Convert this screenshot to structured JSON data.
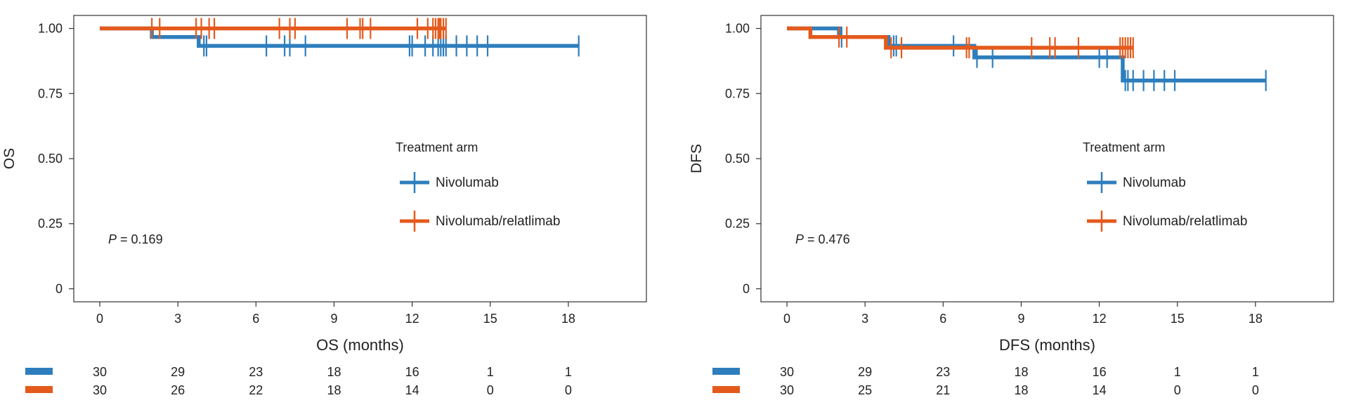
{
  "colors": {
    "nivolumab": "#2E7EBD",
    "nivolumab_relatlimab": "#E45A1C",
    "frame": "#333333"
  },
  "chart_data": [
    {
      "type": "line",
      "subtype": "kaplan-meier",
      "ylabel": "OS",
      "xlabel": "OS (months)",
      "xlim": [
        -1,
        21
      ],
      "ylim": [
        -0.05,
        1.05
      ],
      "xticks": [
        0,
        3,
        6,
        9,
        12,
        15,
        18
      ],
      "yticks": [
        0,
        0.25,
        0.5,
        0.75,
        1.0
      ],
      "ytick_labels": [
        "0",
        "0.25",
        "0.50",
        "0.75",
        "1.00"
      ],
      "grid": false,
      "legend_title": "Treatment arm",
      "legend_position": "right",
      "pvalue_prefix": "P",
      "pvalue_text": " = 0.169",
      "series": [
        {
          "name": "Nivolumab",
          "color_key": "nivolumab",
          "steps": [
            [
              0,
              1.0
            ],
            [
              2.0,
              0.967
            ],
            [
              3.8,
              0.933
            ],
            [
              18.4,
              0.933
            ]
          ],
          "censors": [
            4.0,
            4.1,
            6.4,
            7.1,
            7.3,
            7.9,
            11.9,
            12.0,
            12.5,
            12.8,
            13.0,
            13.1,
            13.2,
            13.3,
            13.7,
            14.1,
            14.5,
            14.9,
            18.4
          ]
        },
        {
          "name": "Nivolumab/relatlimab",
          "color_key": "nivolumab_relatlimab",
          "steps": [
            [
              0,
              1.0
            ],
            [
              13.3,
              1.0
            ]
          ],
          "censors": [
            2.0,
            2.3,
            3.7,
            3.9,
            4.2,
            4.4,
            6.9,
            7.3,
            7.5,
            9.5,
            10.0,
            10.1,
            10.4,
            12.2,
            12.6,
            12.8,
            12.9,
            13.0,
            13.05,
            13.1,
            13.2,
            13.3
          ]
        }
      ],
      "risk_table": {
        "times": [
          0,
          3,
          6,
          9,
          12,
          15,
          18
        ],
        "rows": [
          {
            "color_key": "nivolumab",
            "counts": [
              "30",
              "29",
              "23",
              "18",
              "16",
              "1",
              "1"
            ]
          },
          {
            "color_key": "nivolumab_relatlimab",
            "counts": [
              "30",
              "26",
              "22",
              "18",
              "14",
              "0",
              "0"
            ]
          }
        ]
      }
    },
    {
      "type": "line",
      "subtype": "kaplan-meier",
      "ylabel": "DFS",
      "xlabel": "DFS (months)",
      "xlim": [
        -1,
        21
      ],
      "ylim": [
        -0.05,
        1.05
      ],
      "xticks": [
        0,
        3,
        6,
        9,
        12,
        15,
        18
      ],
      "yticks": [
        0,
        0.25,
        0.5,
        0.75,
        1.0
      ],
      "ytick_labels": [
        "0",
        "0.25",
        "0.50",
        "0.75",
        "1.00"
      ],
      "grid": false,
      "legend_title": "Treatment arm",
      "legend_position": "right",
      "pvalue_prefix": "P",
      "pvalue_text": " = 0.476",
      "series": [
        {
          "name": "Nivolumab",
          "color_key": "nivolumab",
          "steps": [
            [
              0,
              1.0
            ],
            [
              2.0,
              0.967
            ],
            [
              3.9,
              0.933
            ],
            [
              7.2,
              0.889
            ],
            [
              12.9,
              0.8
            ],
            [
              18.4,
              0.8
            ]
          ],
          "censors": [
            2.1,
            4.1,
            4.2,
            6.4,
            7.3,
            7.9,
            12.0,
            12.3,
            13.0,
            13.1,
            13.3,
            13.7,
            14.1,
            14.5,
            14.9,
            18.4
          ]
        },
        {
          "name": "Nivolumab/relatlimab",
          "color_key": "nivolumab_relatlimab",
          "steps": [
            [
              0,
              1.0
            ],
            [
              0.9,
              0.967
            ],
            [
              3.8,
              0.926
            ],
            [
              12.9,
              0.926
            ],
            [
              13.3,
              0.926
            ]
          ],
          "censors": [
            2.0,
            2.3,
            4.0,
            4.4,
            6.9,
            7.0,
            9.4,
            10.1,
            10.3,
            11.2,
            12.8,
            12.9,
            13.0,
            13.1,
            13.2,
            13.3
          ]
        }
      ],
      "risk_table": {
        "times": [
          0,
          3,
          6,
          9,
          12,
          15,
          18
        ],
        "rows": [
          {
            "color_key": "nivolumab",
            "counts": [
              "30",
              "29",
              "23",
              "18",
              "16",
              "1",
              "1"
            ]
          },
          {
            "color_key": "nivolumab_relatlimab",
            "counts": [
              "30",
              "25",
              "21",
              "18",
              "14",
              "0",
              "0"
            ]
          }
        ]
      }
    }
  ]
}
